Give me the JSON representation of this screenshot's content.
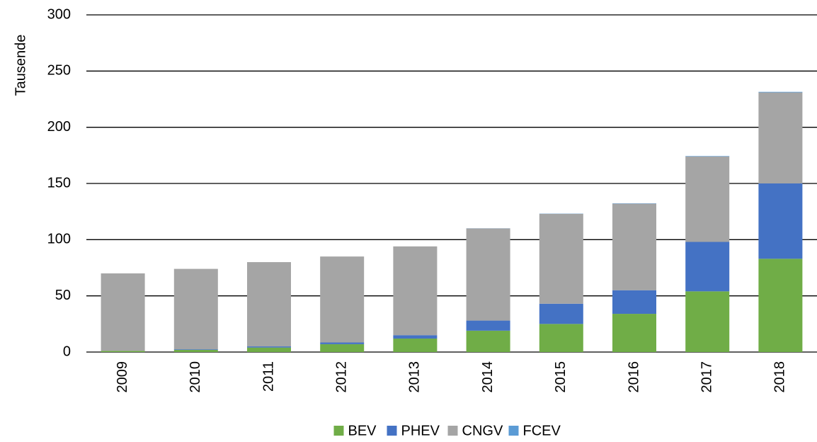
{
  "chart_data": {
    "type": "stacked_bar",
    "y_label": "Tausende",
    "categories": [
      "2009",
      "2010",
      "2011",
      "2012",
      "2013",
      "2014",
      "2015",
      "2016",
      "2017",
      "2018"
    ],
    "series": [
      {
        "name": "BEV",
        "color": "#70ad47",
        "values": [
          1,
          2,
          4,
          7,
          12,
          19,
          25,
          34,
          54,
          83
        ]
      },
      {
        "name": "PHEV",
        "color": "#4472c4",
        "values": [
          0,
          0.5,
          1,
          1.5,
          3,
          9,
          18,
          21,
          44,
          67
        ]
      },
      {
        "name": "CNGV",
        "color": "#a5a5a5",
        "values": [
          69,
          71.5,
          75,
          76.5,
          79,
          82,
          80,
          77,
          76,
          81
        ]
      },
      {
        "name": "FCEV",
        "color": "#5b9bd5",
        "values": [
          0,
          0,
          0,
          0,
          0,
          0.1,
          0.2,
          0.3,
          0.4,
          0.5
        ]
      }
    ],
    "ylim": [
      0,
      300
    ],
    "yticks": [
      0,
      50,
      100,
      150,
      200,
      250,
      300
    ],
    "grid": true,
    "legend": "bottom"
  }
}
